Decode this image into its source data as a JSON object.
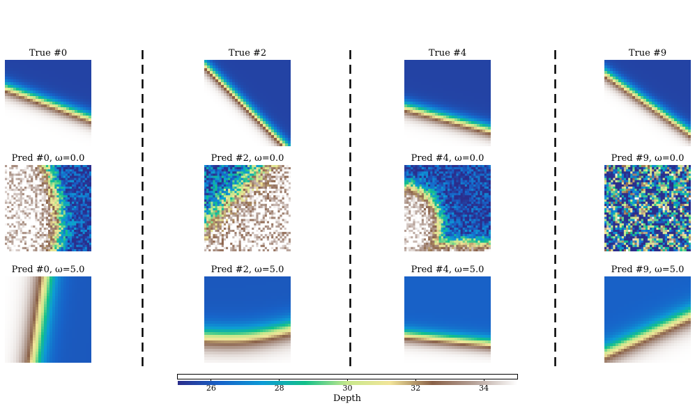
{
  "chart_data": {
    "type": "heatmap",
    "description_grid": "3 rows x 4 columns of depth-field panels separated by dashed vertical dividers",
    "panels": [
      {
        "row": 0,
        "col": 0,
        "title": "True #0",
        "kind": "true",
        "angle": -20,
        "boundary": 0.5
      },
      {
        "row": 0,
        "col": 1,
        "title": "True #2",
        "kind": "true",
        "angle": -45,
        "boundary": 0.55
      },
      {
        "row": 0,
        "col": 2,
        "title": "True #4",
        "kind": "true",
        "angle": -15,
        "boundary": 0.68
      },
      {
        "row": 0,
        "col": 3,
        "title": "True #9",
        "kind": "true",
        "angle": -35,
        "boundary": 0.5
      },
      {
        "row": 1,
        "col": 0,
        "title": "Pred #0, ω=0.0",
        "kind": "noisy-curve-v",
        "noise": 0.35
      },
      {
        "row": 1,
        "col": 1,
        "title": "Pred #2, ω=0.0",
        "kind": "noisy-diag",
        "noise": 0.45
      },
      {
        "row": 1,
        "col": 2,
        "title": "Pred #4, ω=0.0",
        "kind": "noisy-bulge",
        "noise": 0.3
      },
      {
        "row": 1,
        "col": 3,
        "title": "Pred #9, ω=0.0",
        "kind": "noise",
        "noise": 1.0
      },
      {
        "row": 2,
        "col": 0,
        "title": "Pred #0, ω=5.0",
        "kind": "smooth-v"
      },
      {
        "row": 2,
        "col": 1,
        "title": "Pred #2, ω=5.0",
        "kind": "smooth-curve"
      },
      {
        "row": 2,
        "col": 2,
        "title": "Pred #4, ω=5.0",
        "kind": "smooth-low"
      },
      {
        "row": 2,
        "col": 3,
        "title": "Pred #9, ω=5.0",
        "kind": "smooth-tilt"
      }
    ],
    "colorbar": {
      "label": "Depth",
      "range": [
        25,
        35
      ],
      "ticks": [
        26,
        28,
        30,
        32,
        34
      ],
      "colormap": "terrain-like: navy → blue → green → yellow → brown → white",
      "stops": [
        "#2b2e8c",
        "#1763c9",
        "#0d9bd6",
        "#12c08a",
        "#c8e88c",
        "#f2e59a",
        "#8a6148",
        "#b7a39a",
        "#ffffff"
      ]
    }
  }
}
